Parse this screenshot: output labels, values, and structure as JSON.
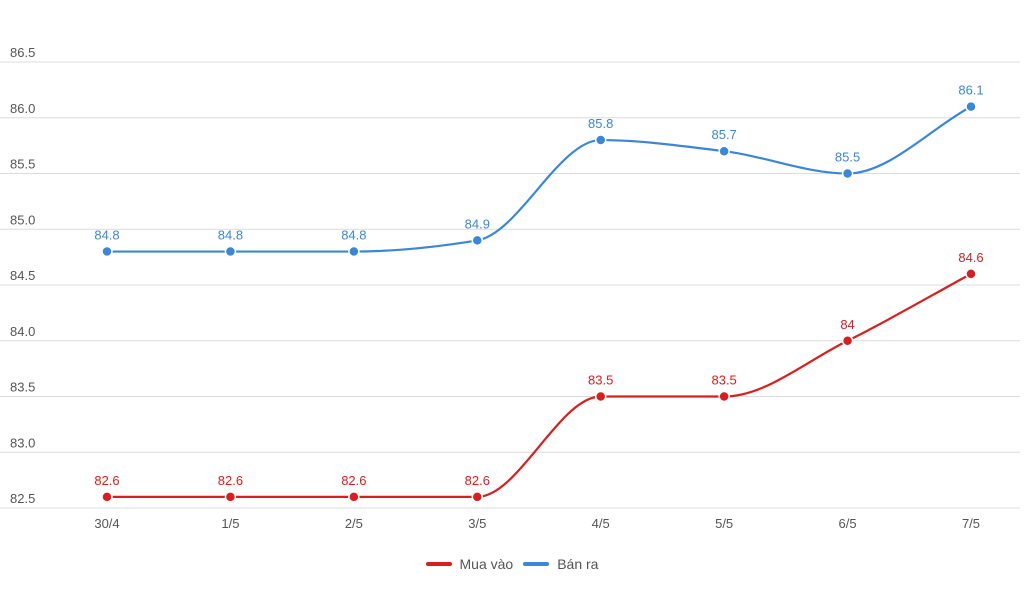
{
  "chart_data": {
    "type": "line",
    "title": "",
    "xlabel": "",
    "ylabel": "",
    "categories": [
      "30/4",
      "1/5",
      "2/5",
      "3/5",
      "4/5",
      "5/5",
      "6/5",
      "7/5"
    ],
    "ylim": [
      82.5,
      86.5
    ],
    "yticks": [
      "82.5",
      "83.0",
      "83.5",
      "84.0",
      "84.5",
      "85.0",
      "85.5",
      "86.0",
      "86.5"
    ],
    "grid": "horizontal",
    "legend_position": "bottom-center",
    "series": [
      {
        "name": "Mua vào",
        "color": "#d81e1e",
        "values": [
          82.6,
          82.6,
          82.6,
          82.6,
          83.5,
          83.5,
          84,
          84.6
        ],
        "labels": [
          "82.6",
          "82.6",
          "82.6",
          "82.6",
          "83.5",
          "83.5",
          "84",
          "84.6"
        ]
      },
      {
        "name": "Bán ra",
        "color": "#3a87d9",
        "values": [
          84.8,
          84.8,
          84.8,
          84.9,
          85.8,
          85.7,
          85.5,
          86.1
        ],
        "labels": [
          "84.8",
          "84.8",
          "84.8",
          "84.9",
          "85.8",
          "85.7",
          "85.5",
          "86.1"
        ]
      }
    ]
  }
}
